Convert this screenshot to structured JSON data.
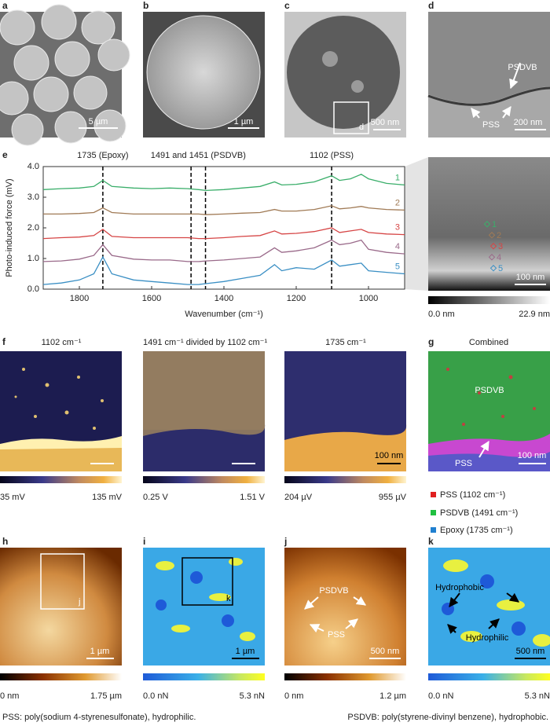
{
  "panels": {
    "a": {
      "label": "a",
      "scale_bar": "5 µm"
    },
    "b": {
      "label": "b",
      "scale_bar": "1 µm"
    },
    "c": {
      "label": "c",
      "scale_bar": "500 nm",
      "inset": "d"
    },
    "d": {
      "label": "d",
      "scale_bar": "200 nm",
      "annotations": [
        "PSDVB",
        "PSS"
      ]
    },
    "e": {
      "label": "e",
      "image_scale_bar": "100 nm",
      "colorbar": [
        "0.0 nm",
        "22.9 nm"
      ]
    },
    "f": {
      "label": "f",
      "maps": [
        {
          "title": "1102 cm⁻¹",
          "colorbar": [
            "35 mV",
            "135 mV"
          ]
        },
        {
          "title": "1491 cm⁻¹ divided by 1102 cm⁻¹",
          "colorbar": [
            "0.25 V",
            "1.51 V"
          ]
        },
        {
          "title": "1735 cm⁻¹",
          "colorbar": [
            "204 µV",
            "955 µV"
          ],
          "scale_bar": "100 nm"
        }
      ]
    },
    "g": {
      "label": "g",
      "title": "Combined",
      "annotations": [
        "PSDVB",
        "PSS"
      ],
      "scale_bar": "100 nm",
      "legend": [
        "PSS (1102 cm⁻¹)",
        "PSDVB (1491 cm⁻¹)",
        "Epoxy (1735 cm⁻¹)"
      ]
    },
    "h": {
      "label": "h",
      "inset": "j",
      "scale_bar": "1 µm",
      "colorbar": [
        "0 nm",
        "1.75 µm"
      ]
    },
    "i": {
      "label": "i",
      "inset": "k",
      "scale_bar": "1 µm",
      "colorbar": [
        "0.0 nN",
        "5.3 nN"
      ]
    },
    "j": {
      "label": "j",
      "annotations": [
        "PSDVB",
        "PSS"
      ],
      "scale_bar": "500 nm",
      "colorbar": [
        "0 nm",
        "1.2 µm"
      ]
    },
    "k": {
      "label": "k",
      "annotations": [
        "Hydrophobic",
        "Hydrophilic"
      ],
      "scale_bar": "500 nm",
      "colorbar": [
        "0.0 nN",
        "5.3 nN"
      ]
    }
  },
  "captions": [
    "PSS: poly(sodium 4-styrenesulfonate), hydrophilic.",
    "PSDVB: poly(styrene-divinyl benzene), hydrophobic."
  ],
  "chart_data": {
    "type": "line",
    "xlabel": "Wavenumber (cm⁻¹)",
    "ylabel": "Photo-induced force (mV)",
    "markers": [
      1735,
      1491,
      1451,
      1102
    ],
    "marker_labels": [
      "1735 (Epoxy)",
      "1491 and 1451 (PSDVB)",
      "1102 (PSS)"
    ],
    "xlim": [
      1900,
      900
    ],
    "xticks": [
      1800,
      1600,
      1400,
      1200,
      1000
    ],
    "ylim": [
      0,
      4
    ],
    "yticks": [
      {
        "value": 0,
        "label": "0.0"
      },
      {
        "value": 1,
        "label": "1.0"
      },
      {
        "value": 2,
        "label": "2.0"
      },
      {
        "value": 3,
        "label": "3.0"
      },
      {
        "value": 4,
        "label": "4.0"
      }
    ],
    "x": [
      1900,
      1850,
      1800,
      1760,
      1735,
      1710,
      1650,
      1600,
      1550,
      1500,
      1470,
      1450,
      1400,
      1350,
      1300,
      1260,
      1240,
      1200,
      1150,
      1102,
      1080,
      1050,
      1020,
      1000,
      950,
      900
    ],
    "series": [
      {
        "name": "1",
        "color": "#3aae6a",
        "values": [
          3.25,
          3.28,
          3.3,
          3.35,
          3.55,
          3.35,
          3.3,
          3.28,
          3.3,
          3.28,
          3.25,
          3.22,
          3.25,
          3.3,
          3.35,
          3.5,
          3.4,
          3.42,
          3.5,
          3.7,
          3.55,
          3.6,
          3.75,
          3.6,
          3.45,
          3.4
        ]
      },
      {
        "name": "2",
        "color": "#a07a55",
        "values": [
          2.45,
          2.45,
          2.47,
          2.5,
          2.65,
          2.5,
          2.45,
          2.45,
          2.45,
          2.45,
          2.45,
          2.43,
          2.45,
          2.48,
          2.5,
          2.6,
          2.55,
          2.55,
          2.6,
          2.72,
          2.62,
          2.65,
          2.7,
          2.65,
          2.6,
          2.58
        ]
      },
      {
        "name": "3",
        "color": "#d64545",
        "values": [
          1.65,
          1.68,
          1.7,
          1.75,
          1.95,
          1.72,
          1.68,
          1.68,
          1.68,
          1.68,
          1.65,
          1.65,
          1.68,
          1.72,
          1.75,
          1.9,
          1.8,
          1.82,
          1.88,
          2.0,
          1.85,
          1.9,
          1.95,
          1.85,
          1.8,
          1.78
        ]
      },
      {
        "name": "4",
        "color": "#9a6a8a",
        "values": [
          0.9,
          0.92,
          0.98,
          1.1,
          1.45,
          1.1,
          0.98,
          0.95,
          0.95,
          0.9,
          0.9,
          0.92,
          0.95,
          1.0,
          1.05,
          1.35,
          1.2,
          1.25,
          1.35,
          1.6,
          1.45,
          1.5,
          1.6,
          1.3,
          1.2,
          1.15
        ]
      },
      {
        "name": "5",
        "color": "#3a8fc4",
        "values": [
          0.15,
          0.2,
          0.3,
          0.5,
          1.05,
          0.5,
          0.3,
          0.25,
          0.2,
          0.15,
          0.15,
          0.18,
          0.25,
          0.35,
          0.45,
          0.8,
          0.6,
          0.7,
          0.65,
          0.95,
          0.75,
          0.8,
          0.85,
          0.6,
          0.55,
          0.5
        ]
      }
    ]
  }
}
